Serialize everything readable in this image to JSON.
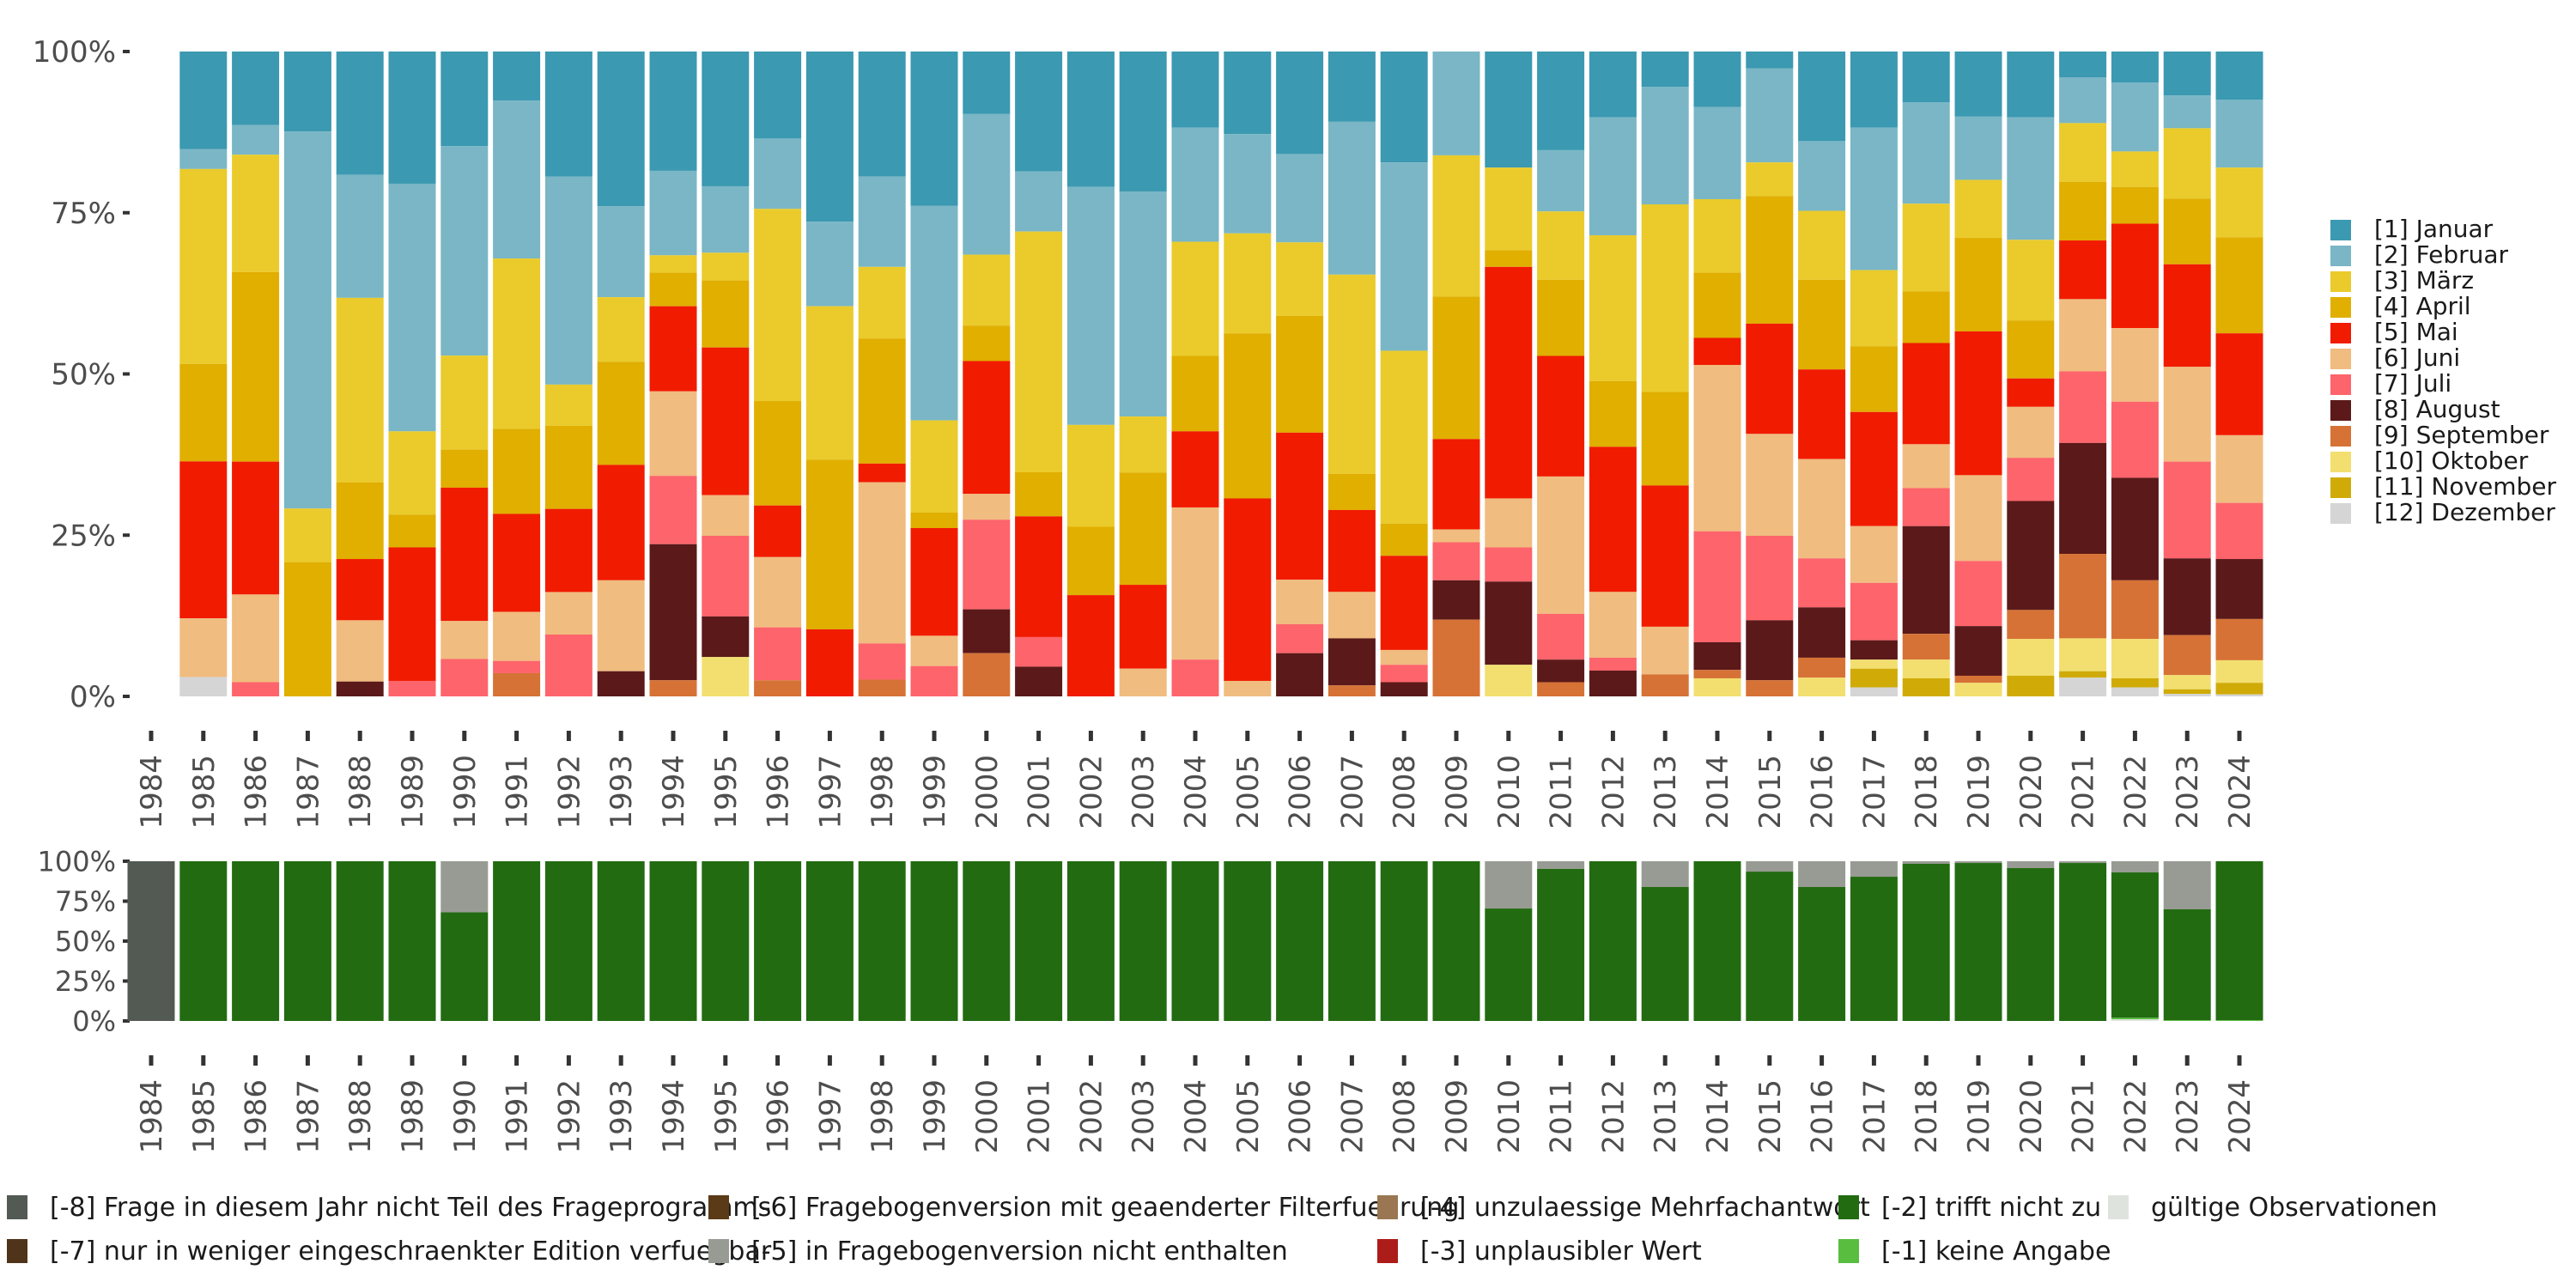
{
  "chart_data": [
    {
      "type": "bar",
      "stacked": true,
      "title": "",
      "xlabel": "",
      "ylabel": "",
      "ylim": [
        0,
        100
      ],
      "yticks": [
        "0%",
        "25%",
        "50%",
        "75%",
        "100%"
      ],
      "grid": false,
      "legend_position": "right",
      "categories": [
        "1984",
        "1985",
        "1986",
        "1987",
        "1988",
        "1989",
        "1990",
        "1991",
        "1992",
        "1993",
        "1994",
        "1995",
        "1996",
        "1997",
        "1998",
        "1999",
        "2000",
        "2001",
        "2002",
        "2003",
        "2004",
        "2005",
        "2006",
        "2007",
        "2008",
        "2009",
        "2010",
        "2011",
        "2012",
        "2013",
        "2014",
        "2015",
        "2016",
        "2017",
        "2018",
        "2019",
        "2020",
        "2021",
        "2022",
        "2023",
        "2024"
      ],
      "series": [
        {
          "name": "[1] Januar",
          "color": "#3b99b1",
          "values": [
            0,
            15.1,
            11.4,
            12.4,
            19.1,
            20.5,
            14.7,
            7.6,
            19.4,
            24.0,
            18.5,
            20.9,
            13.5,
            26.4,
            19.4,
            23.9,
            9.7,
            17.4,
            21.0,
            21.7,
            11.8,
            12.8,
            15.9,
            10.9,
            17.2,
            0,
            18.0,
            15.3,
            10.2,
            5.5,
            8.6,
            2.6,
            13.9,
            11.8,
            7.9,
            10.1,
            10.2,
            4.0,
            4.8,
            6.8,
            7.5
          ]
        },
        {
          "name": "[2] Februar",
          "color": "#7ab6c5",
          "values": [
            0,
            3.1,
            4.6,
            58.4,
            19.1,
            38.4,
            32.5,
            24.5,
            32.3,
            14.1,
            13.1,
            10.3,
            10.9,
            13.1,
            14.0,
            33.3,
            21.8,
            8.7,
            36.9,
            34.9,
            17.7,
            15.4,
            13.7,
            23.7,
            29.2,
            16.1,
            0,
            9.5,
            18.3,
            18.2,
            14.3,
            14.6,
            10.8,
            22.1,
            15.7,
            9.8,
            19.0,
            7.1,
            10.7,
            5.1,
            10.5
          ]
        },
        {
          "name": "[3] März",
          "color": "#eacb2b",
          "values": [
            0,
            30.2,
            18.2,
            8.3,
            28.6,
            12.9,
            14.6,
            26.4,
            6.4,
            10.0,
            2.7,
            4.3,
            29.8,
            23.8,
            11.1,
            14.3,
            11.0,
            34.9,
            15.8,
            8.7,
            17.7,
            15.5,
            11.4,
            30.9,
            26.8,
            21.9,
            12.8,
            10.6,
            22.6,
            29.1,
            11.4,
            5.2,
            10.7,
            11.8,
            13.6,
            9.0,
            12.5,
            9.1,
            5.5,
            10.9,
            10.8
          ]
        },
        {
          "name": "[4] April",
          "color": "#e0af00",
          "values": [
            0,
            15.1,
            29.4,
            20.8,
            11.9,
            5.1,
            5.9,
            13.2,
            12.9,
            16.0,
            5.2,
            10.4,
            16.2,
            26.3,
            19.4,
            2.4,
            5.5,
            6.4,
            10.6,
            17.4,
            11.7,
            25.6,
            18.1,
            5.6,
            5.0,
            22.1,
            2.6,
            11.8,
            10.2,
            14.5,
            10.1,
            19.8,
            13.9,
            10.2,
            8.0,
            14.5,
            9.0,
            9.1,
            5.7,
            10.2,
            14.9
          ]
        },
        {
          "name": "[5] Mai",
          "color": "#f11b00",
          "values": [
            0,
            24.3,
            20.6,
            0,
            9.5,
            20.7,
            20.7,
            15.2,
            12.9,
            17.9,
            13.2,
            22.9,
            8.0,
            10.4,
            2.9,
            16.7,
            20.6,
            17.5,
            15.7,
            13.0,
            11.8,
            28.3,
            22.8,
            12.7,
            14.6,
            14.0,
            35.9,
            18.7,
            22.5,
            21.9,
            4.2,
            17.1,
            13.9,
            17.7,
            15.7,
            22.3,
            4.4,
            9.1,
            16.2,
            15.9,
            15.8
          ]
        },
        {
          "name": "[6] Juni",
          "color": "#f0bc7f",
          "values": [
            0,
            9.1,
            13.6,
            0,
            9.5,
            0,
            5.9,
            7.6,
            6.6,
            14.1,
            13.1,
            6.3,
            10.9,
            0,
            25.0,
            4.7,
            4.0,
            0,
            0,
            4.3,
            23.6,
            2.4,
            6.9,
            7.2,
            2.3,
            2.0,
            7.6,
            21.3,
            10.2,
            7.4,
            25.8,
            15.8,
            15.4,
            8.8,
            6.8,
            13.3,
            7.9,
            11.2,
            11.4,
            14.7,
            10.5
          ]
        },
        {
          "name": "[7] Juli",
          "color": "#fe646b",
          "values": [
            0,
            0,
            2.2,
            0,
            0,
            2.4,
            5.8,
            1.9,
            9.6,
            0,
            10.6,
            12.5,
            8.2,
            0,
            5.6,
            4.7,
            13.9,
            4.3,
            0,
            0,
            5.7,
            0,
            4.5,
            0,
            2.7,
            5.9,
            5.3,
            7.1,
            2.0,
            0,
            17.2,
            13.1,
            7.6,
            8.9,
            5.9,
            10.1,
            6.7,
            11.1,
            11.8,
            15.0,
            8.7
          ]
        },
        {
          "name": "[8] August",
          "color": "#5b1919",
          "values": [
            0,
            0,
            0,
            0,
            2.3,
            0,
            0,
            0,
            0,
            3.9,
            21.1,
            6.3,
            0,
            0,
            0,
            0,
            6.8,
            4.3,
            0,
            0,
            0,
            0,
            6.7,
            7.3,
            2.2,
            6.1,
            12.9,
            3.5,
            4.0,
            0,
            4.3,
            9.3,
            7.8,
            3.0,
            16.7,
            7.7,
            16.9,
            17.2,
            15.9,
            11.9,
            9.3
          ]
        },
        {
          "name": "[9] September",
          "color": "#d67236",
          "values": [
            0,
            0,
            0,
            0,
            0,
            0,
            0,
            3.6,
            0,
            0,
            2.5,
            0,
            2.5,
            0,
            2.6,
            0,
            6.7,
            0,
            0,
            0,
            0,
            0,
            0,
            1.7,
            0,
            11.9,
            0,
            2.2,
            0,
            3.4,
            1.3,
            2.5,
            3.1,
            0,
            4.0,
            1.1,
            4.5,
            13.1,
            9.1,
            6.2,
            6.4
          ]
        },
        {
          "name": "[10] Oktober",
          "color": "#f2df6f",
          "values": [
            0,
            0,
            0,
            0,
            0,
            0,
            0,
            0,
            0,
            0,
            0,
            6.1,
            0,
            0,
            0,
            0,
            0,
            0,
            0,
            0,
            0,
            0,
            0,
            0,
            0,
            0,
            4.9,
            0,
            0,
            0,
            2.8,
            0,
            2.9,
            1.4,
            2.9,
            2.1,
            5.7,
            5.1,
            6.1,
            2.2,
            3.5
          ]
        },
        {
          "name": "[11] November",
          "color": "#d0ab08",
          "values": [
            0,
            0,
            0,
            0,
            0,
            0,
            0,
            0,
            0,
            0,
            0,
            0,
            0,
            0,
            0,
            0,
            0,
            0,
            0,
            0,
            0,
            0,
            0,
            0,
            0,
            0,
            0,
            0,
            0,
            0,
            0,
            0,
            0,
            2.9,
            2.8,
            0,
            3.2,
            1.0,
            1.4,
            0.7,
            1.8
          ]
        },
        {
          "name": "[12] Dezember",
          "color": "#d5d5d5",
          "values": [
            0,
            3.0,
            0,
            0,
            0,
            0,
            0,
            0,
            0,
            0,
            0,
            0,
            0,
            0,
            0,
            0,
            0,
            0,
            0,
            0,
            0,
            0,
            0,
            0,
            0,
            0,
            0,
            0,
            0,
            0,
            0,
            0,
            0,
            1.4,
            0,
            0,
            0,
            2.9,
            1.4,
            0.4,
            0.3
          ]
        }
      ]
    },
    {
      "type": "bar",
      "stacked": true,
      "title": "",
      "xlabel": "",
      "ylabel": "",
      "ylim": [
        0,
        100
      ],
      "yticks": [
        "0%",
        "25%",
        "50%",
        "75%",
        "100%"
      ],
      "grid": false,
      "legend_position": "bottom",
      "categories": [
        "1984",
        "1985",
        "1986",
        "1987",
        "1988",
        "1989",
        "1990",
        "1991",
        "1992",
        "1993",
        "1994",
        "1995",
        "1996",
        "1997",
        "1998",
        "1999",
        "2000",
        "2001",
        "2002",
        "2003",
        "2004",
        "2005",
        "2006",
        "2007",
        "2008",
        "2009",
        "2010",
        "2011",
        "2012",
        "2013",
        "2014",
        "2015",
        "2016",
        "2017",
        "2018",
        "2019",
        "2020",
        "2021",
        "2022",
        "2023",
        "2024"
      ],
      "series": [
        {
          "name": "[-8] Frage in diesem Jahr nicht Teil des Frageprogramms",
          "color": "#535953",
          "values": [
            100,
            0,
            0,
            0,
            0,
            0,
            0,
            0,
            0,
            0,
            0,
            0,
            0,
            0,
            0,
            0,
            0,
            0,
            0,
            0,
            0,
            0,
            0,
            0,
            0,
            0,
            0,
            0,
            0,
            0,
            0,
            0,
            0,
            0,
            0,
            0,
            0,
            0,
            0,
            0,
            0
          ]
        },
        {
          "name": "[-7] nur in weniger eingeschraenkter Edition verfuegbar",
          "color": "#4f3419",
          "values": [
            0,
            0,
            0,
            0,
            0,
            0,
            0,
            0,
            0,
            0,
            0,
            0,
            0,
            0,
            0,
            0,
            0,
            0,
            0,
            0,
            0,
            0,
            0,
            0,
            0,
            0,
            0,
            0,
            0,
            0,
            0,
            0,
            0,
            0,
            0,
            0,
            0,
            0,
            0,
            0,
            0
          ]
        },
        {
          "name": "[-6] Fragebogenversion mit geaenderter Filterfuehrung",
          "color": "#5b3a17",
          "values": [
            0,
            0,
            0,
            0,
            0,
            0,
            0,
            0,
            0,
            0,
            0,
            0,
            0,
            0,
            0,
            0,
            0,
            0,
            0,
            0,
            0,
            0,
            0,
            0,
            0,
            0,
            0,
            0,
            0,
            0,
            0,
            0,
            0,
            0,
            0,
            0,
            0,
            0,
            0,
            0,
            0
          ]
        },
        {
          "name": "[-5] in Fragebogenversion nicht enthalten",
          "color": "#989b93",
          "values": [
            0,
            0,
            0,
            0,
            0,
            0,
            32,
            0,
            0,
            0,
            0,
            0,
            0,
            0,
            0,
            0,
            0,
            0,
            0,
            0,
            0,
            0,
            0,
            0,
            0,
            0,
            29.6,
            4.8,
            0,
            16.1,
            0,
            6.5,
            16.1,
            9.7,
            1.6,
            1.1,
            4.3,
            1.1,
            7.0,
            30.1,
            0
          ]
        },
        {
          "name": "[-4] unzulaessige Mehrfachantwort",
          "color": "#9a7752",
          "values": [
            0,
            0,
            0,
            0,
            0,
            0,
            0,
            0,
            0,
            0,
            0,
            0,
            0,
            0,
            0,
            0,
            0,
            0,
            0,
            0,
            0,
            0,
            0,
            0,
            0,
            0,
            0,
            0,
            0,
            0,
            0,
            0,
            0,
            0,
            0,
            0,
            0,
            0,
            0,
            0,
            0
          ]
        },
        {
          "name": "[-3] unplausibler Wert",
          "color": "#ac1c19",
          "values": [
            0,
            0,
            0,
            0,
            0,
            0,
            0,
            0,
            0,
            0,
            0,
            0,
            0,
            0,
            0,
            0,
            0,
            0,
            0,
            0,
            0,
            0,
            0,
            0,
            0,
            0,
            0,
            0,
            0,
            0,
            0,
            0,
            0,
            0,
            0,
            0,
            0,
            0,
            0,
            0,
            0
          ]
        },
        {
          "name": "[-2] trifft nicht zu",
          "color": "#226b11",
          "values": [
            0,
            100,
            100,
            100,
            100,
            100,
            68,
            100,
            100,
            100,
            100,
            100,
            100,
            100,
            100,
            100,
            100,
            100,
            100,
            100,
            100,
            100,
            100,
            100,
            100,
            100,
            70.4,
            95.2,
            100,
            83.9,
            100,
            93.5,
            83.9,
            90.3,
            98.4,
            98.9,
            95.7,
            98.9,
            91.0,
            69.4,
            99.5
          ]
        },
        {
          "name": "[-1] keine Angabe",
          "color": "#59bd40",
          "values": [
            0,
            0,
            0,
            0,
            0,
            0,
            0,
            0,
            0,
            0,
            0,
            0,
            0,
            0,
            0,
            0,
            0,
            0,
            0,
            0,
            0,
            0,
            0,
            0,
            0,
            0,
            0,
            0,
            0,
            0,
            0,
            0,
            0,
            0,
            0,
            0,
            0,
            0,
            1.0,
            0.5,
            0.5
          ]
        },
        {
          "name": "gültige Observationen",
          "color": "#dfe3dd",
          "values": [
            0,
            0,
            0,
            0,
            0,
            0,
            0,
            0,
            0,
            0,
            0,
            0,
            0,
            0,
            0,
            0,
            0,
            0,
            0,
            0,
            0,
            0,
            0,
            0,
            0,
            0,
            0,
            0,
            0,
            0,
            0,
            0,
            0,
            0,
            0,
            0,
            0,
            0,
            1.0,
            0,
            0
          ]
        }
      ]
    }
  ],
  "legend_bottom_layout": [
    [
      "[-8] Frage in diesem Jahr nicht Teil des Frageprogramms",
      "[-7] nur in weniger eingeschraenkter Edition verfuegbar"
    ],
    [
      "[-6] Fragebogenversion mit geaenderter Filterfuehrung",
      "[-5] in Fragebogenversion nicht enthalten"
    ],
    [
      "[-4] unzulaessige Mehrfachantwort",
      "[-3] unplausibler Wert"
    ],
    [
      "[-2] trifft nicht zu",
      "[-1] keine Angabe"
    ],
    [
      "gültige Observationen"
    ]
  ]
}
